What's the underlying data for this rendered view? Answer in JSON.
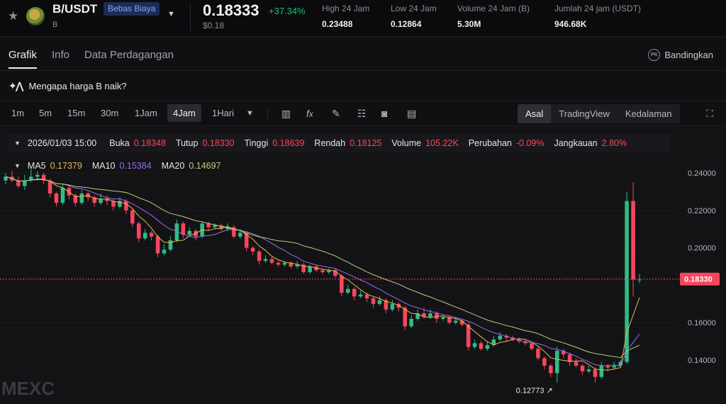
{
  "ticker": {
    "pair": "B/USDT",
    "badge": "Bebas Biaya",
    "base": "B",
    "price": "0.18333",
    "change": "+37.34%",
    "usd_price": "$0.18",
    "stats": [
      {
        "label": "High 24 Jam",
        "value": "0.23488"
      },
      {
        "label": "Low 24 Jam",
        "value": "0.12864"
      },
      {
        "label": "Volume 24 Jam (B)",
        "value": "5.30M"
      },
      {
        "label": "Jumlah 24 jam (USDT)",
        "value": "946.68K"
      }
    ]
  },
  "tabs": [
    "Grafik",
    "Info",
    "Data Perdagangan"
  ],
  "compare_label": "Bandingkan",
  "compare_icon_text": "PK",
  "question": "Mengapa harga B naik?",
  "timeframes": [
    "1m",
    "5m",
    "15m",
    "30m",
    "1Jam",
    "4Jam",
    "1Hari"
  ],
  "active_timeframe": "4Jam",
  "views": [
    "Asal",
    "TradingView",
    "Kedalaman"
  ],
  "active_view": "Asal",
  "ohlc": {
    "date": "2026/01/03 15:00",
    "open_label": "Buka",
    "open": "0.18348",
    "close_label": "Tutup",
    "close": "0.18330",
    "high_label": "Tinggi",
    "high": "0.18639",
    "low_label": "Rendah",
    "low": "0.18125",
    "volume_label": "Volume",
    "volume": "105.22K",
    "change_label": "Perubahan",
    "change": "-0.09%",
    "range_label": "Jangkauan",
    "range": "2.80%"
  },
  "ma": [
    {
      "label": "MA5",
      "value": "0.17379",
      "color": "#e8b84a"
    },
    {
      "label": "MA10",
      "value": "0.15384",
      "color": "#9a6bf0"
    },
    {
      "label": "MA20",
      "value": "0.14697",
      "color": "#b8cf7a"
    }
  ],
  "watermark": "MEXC",
  "chart_data": {
    "type": "candlestick",
    "y_ticks": [
      0.24,
      0.22,
      0.2,
      0.18,
      0.16,
      0.14
    ],
    "y_tick_labels": [
      "0.24000",
      "0.22000",
      "0.20000",
      "",
      "0.16000",
      "0.14000"
    ],
    "ylim": [
      0.123,
      0.25
    ],
    "current_price_label": "0.18330",
    "current_price": 0.1833,
    "low_marker": "0.12773",
    "low_marker_value": 0.12773,
    "colors": {
      "up": "#2ebd85",
      "down": "#f6465d"
    },
    "candles": [
      [
        0.236,
        0.238,
        0.24,
        0.234
      ],
      [
        0.238,
        0.236,
        0.241,
        0.235
      ],
      [
        0.236,
        0.233,
        0.238,
        0.232
      ],
      [
        0.233,
        0.236,
        0.239,
        0.231
      ],
      [
        0.236,
        0.238,
        0.242,
        0.235
      ],
      [
        0.238,
        0.239,
        0.241,
        0.236
      ],
      [
        0.239,
        0.236,
        0.24,
        0.234
      ],
      [
        0.236,
        0.229,
        0.237,
        0.227
      ],
      [
        0.229,
        0.224,
        0.23,
        0.222
      ],
      [
        0.224,
        0.232,
        0.234,
        0.223
      ],
      [
        0.232,
        0.228,
        0.233,
        0.226
      ],
      [
        0.228,
        0.224,
        0.229,
        0.222
      ],
      [
        0.224,
        0.229,
        0.231,
        0.223
      ],
      [
        0.229,
        0.227,
        0.23,
        0.225
      ],
      [
        0.227,
        0.224,
        0.228,
        0.222
      ],
      [
        0.224,
        0.226,
        0.229,
        0.223
      ],
      [
        0.226,
        0.225,
        0.228,
        0.223
      ],
      [
        0.225,
        0.222,
        0.226,
        0.22
      ],
      [
        0.222,
        0.225,
        0.227,
        0.221
      ],
      [
        0.225,
        0.22,
        0.226,
        0.218
      ],
      [
        0.22,
        0.213,
        0.221,
        0.211
      ],
      [
        0.213,
        0.205,
        0.214,
        0.203
      ],
      [
        0.205,
        0.208,
        0.21,
        0.204
      ],
      [
        0.208,
        0.206,
        0.209,
        0.204
      ],
      [
        0.206,
        0.197,
        0.207,
        0.195
      ],
      [
        0.197,
        0.199,
        0.202,
        0.196
      ],
      [
        0.199,
        0.204,
        0.206,
        0.198
      ],
      [
        0.204,
        0.213,
        0.215,
        0.203
      ],
      [
        0.213,
        0.207,
        0.214,
        0.205
      ],
      [
        0.207,
        0.209,
        0.211,
        0.206
      ],
      [
        0.209,
        0.206,
        0.21,
        0.204
      ],
      [
        0.206,
        0.213,
        0.214,
        0.205
      ],
      [
        0.213,
        0.211,
        0.214,
        0.209
      ],
      [
        0.211,
        0.212,
        0.213,
        0.21
      ],
      [
        0.212,
        0.21,
        0.213,
        0.209
      ],
      [
        0.21,
        0.211,
        0.213,
        0.209
      ],
      [
        0.211,
        0.206,
        0.212,
        0.205
      ],
      [
        0.206,
        0.208,
        0.21,
        0.205
      ],
      [
        0.208,
        0.2,
        0.209,
        0.198
      ],
      [
        0.2,
        0.198,
        0.201,
        0.196
      ],
      [
        0.198,
        0.193,
        0.199,
        0.191
      ],
      [
        0.193,
        0.194,
        0.196,
        0.192
      ],
      [
        0.194,
        0.192,
        0.195,
        0.191
      ],
      [
        0.192,
        0.191,
        0.193,
        0.19
      ],
      [
        0.191,
        0.192,
        0.193,
        0.19
      ],
      [
        0.192,
        0.19,
        0.193,
        0.189
      ],
      [
        0.19,
        0.191,
        0.193,
        0.189
      ],
      [
        0.191,
        0.187,
        0.192,
        0.186
      ],
      [
        0.187,
        0.19,
        0.191,
        0.186
      ],
      [
        0.19,
        0.188,
        0.191,
        0.187
      ],
      [
        0.188,
        0.187,
        0.189,
        0.186
      ],
      [
        0.187,
        0.188,
        0.189,
        0.186
      ],
      [
        0.188,
        0.185,
        0.189,
        0.184
      ],
      [
        0.185,
        0.176,
        0.186,
        0.174
      ],
      [
        0.176,
        0.178,
        0.18,
        0.175
      ],
      [
        0.178,
        0.174,
        0.179,
        0.172
      ],
      [
        0.174,
        0.175,
        0.177,
        0.173
      ],
      [
        0.175,
        0.173,
        0.176,
        0.171
      ],
      [
        0.173,
        0.17,
        0.174,
        0.168
      ],
      [
        0.17,
        0.172,
        0.174,
        0.169
      ],
      [
        0.172,
        0.167,
        0.173,
        0.165
      ],
      [
        0.167,
        0.17,
        0.172,
        0.166
      ],
      [
        0.17,
        0.168,
        0.171,
        0.166
      ],
      [
        0.168,
        0.158,
        0.169,
        0.156
      ],
      [
        0.158,
        0.162,
        0.164,
        0.157
      ],
      [
        0.162,
        0.165,
        0.167,
        0.161
      ],
      [
        0.165,
        0.163,
        0.168,
        0.162
      ],
      [
        0.163,
        0.165,
        0.167,
        0.162
      ],
      [
        0.165,
        0.162,
        0.166,
        0.16
      ],
      [
        0.162,
        0.163,
        0.164,
        0.161
      ],
      [
        0.163,
        0.16,
        0.164,
        0.159
      ],
      [
        0.16,
        0.161,
        0.163,
        0.159
      ],
      [
        0.161,
        0.159,
        0.162,
        0.158
      ],
      [
        0.159,
        0.147,
        0.16,
        0.145
      ],
      [
        0.147,
        0.149,
        0.151,
        0.146
      ],
      [
        0.149,
        0.146,
        0.15,
        0.145
      ],
      [
        0.146,
        0.148,
        0.15,
        0.145
      ],
      [
        0.148,
        0.151,
        0.153,
        0.147
      ],
      [
        0.151,
        0.153,
        0.155,
        0.15
      ],
      [
        0.153,
        0.152,
        0.154,
        0.15
      ],
      [
        0.152,
        0.151,
        0.153,
        0.15
      ],
      [
        0.151,
        0.15,
        0.152,
        0.149
      ],
      [
        0.15,
        0.149,
        0.151,
        0.148
      ],
      [
        0.149,
        0.146,
        0.15,
        0.145
      ],
      [
        0.146,
        0.141,
        0.147,
        0.14
      ],
      [
        0.141,
        0.137,
        0.142,
        0.135
      ],
      [
        0.137,
        0.133,
        0.138,
        0.131
      ],
      [
        0.133,
        0.145,
        0.147,
        0.128
      ],
      [
        0.145,
        0.143,
        0.146,
        0.141
      ],
      [
        0.143,
        0.139,
        0.144,
        0.137
      ],
      [
        0.139,
        0.137,
        0.141,
        0.136
      ],
      [
        0.137,
        0.134,
        0.138,
        0.132
      ],
      [
        0.134,
        0.135,
        0.137,
        0.133
      ],
      [
        0.135,
        0.131,
        0.136,
        0.128
      ],
      [
        0.131,
        0.137,
        0.139,
        0.13
      ],
      [
        0.137,
        0.136,
        0.138,
        0.134
      ],
      [
        0.136,
        0.137,
        0.139,
        0.135
      ],
      [
        0.137,
        0.139,
        0.14,
        0.136
      ],
      [
        0.139,
        0.225,
        0.23,
        0.138
      ],
      [
        0.225,
        0.183,
        0.235,
        0.174
      ],
      [
        0.183,
        0.183,
        0.186,
        0.181
      ]
    ]
  }
}
